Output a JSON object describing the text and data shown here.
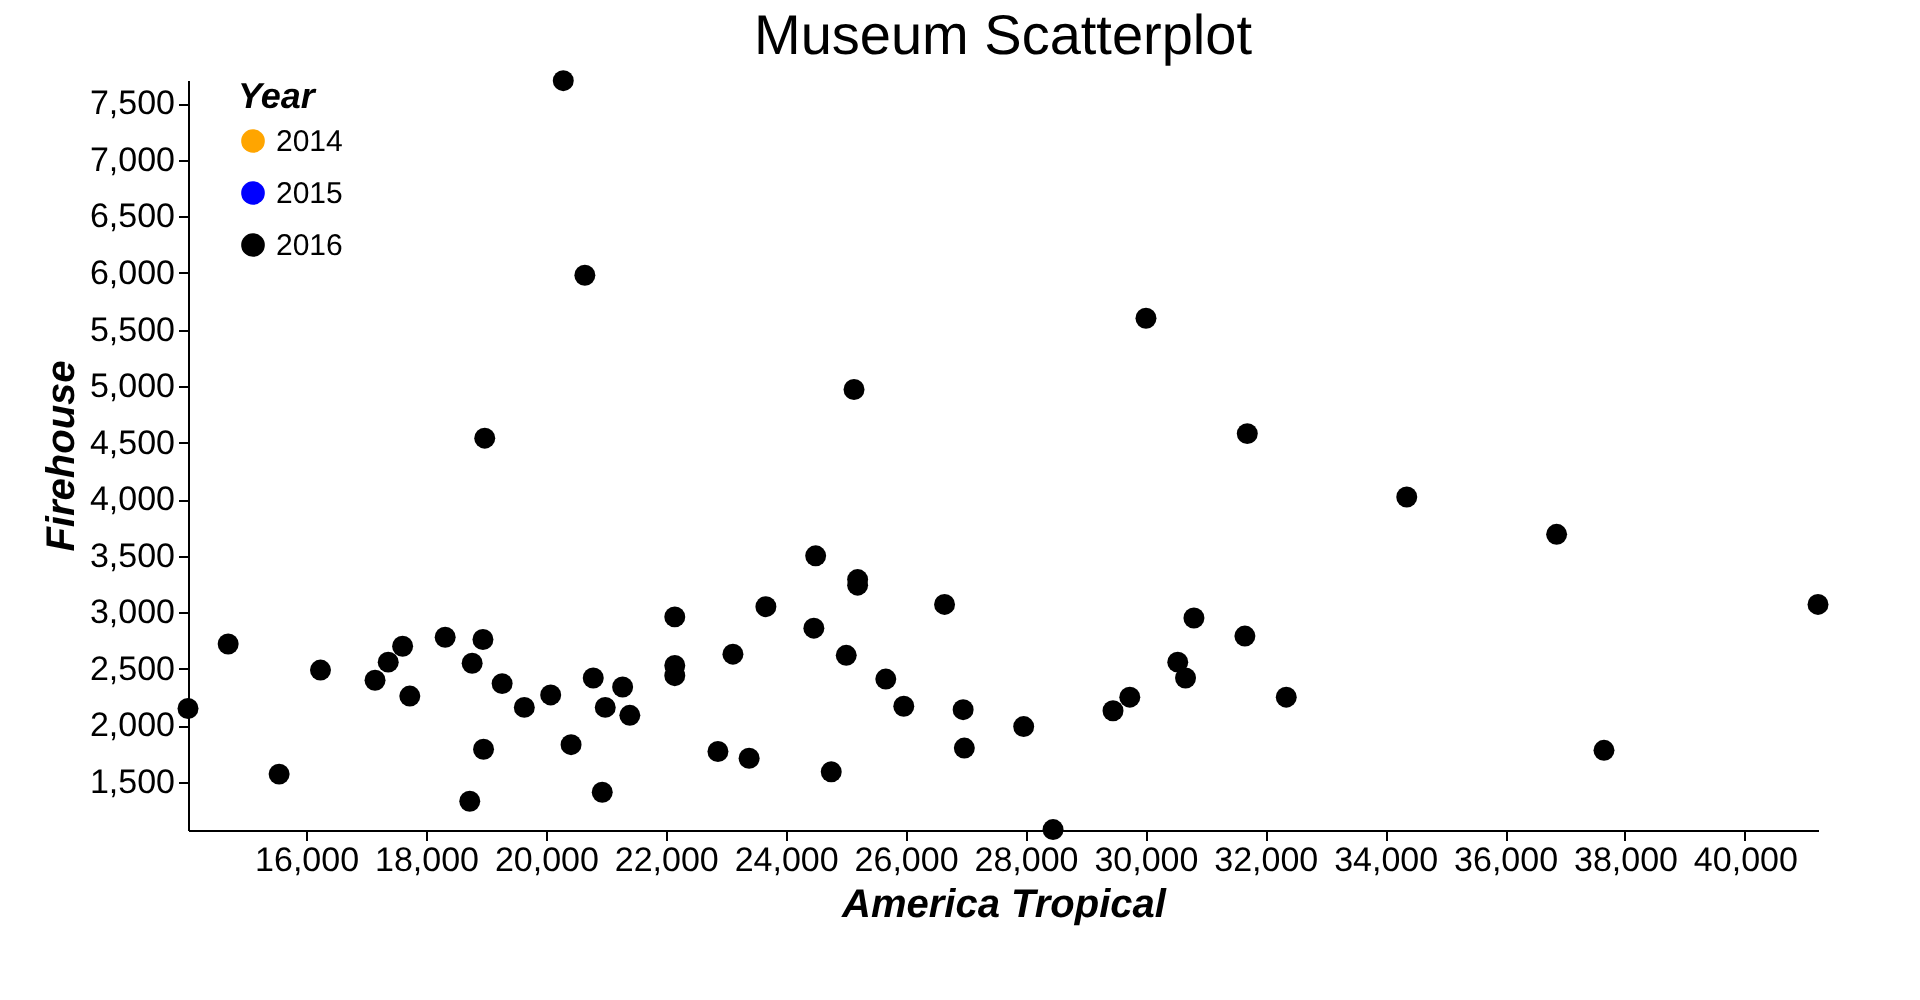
{
  "chart_data": {
    "type": "scatter",
    "title": "Museum Scatterplot",
    "xlabel": "America Tropical",
    "ylabel": "Firehouse",
    "legend_title": "Year",
    "series": [
      {
        "name": "2014",
        "color": "#ffa500"
      },
      {
        "name": "2015",
        "color": "#0000ff"
      },
      {
        "name": "2016",
        "color": "#000000",
        "x": [
          14030,
          14700,
          15550,
          16240,
          17150,
          17370,
          17610,
          17730,
          18320,
          18770,
          18950,
          18730,
          18960,
          19270,
          19640,
          20080,
          20420,
          20790,
          20990,
          20940,
          21280,
          21400,
          22150,
          22150,
          22150,
          22870,
          23120,
          23390,
          23670,
          24500,
          24470,
          24760,
          25010,
          25200,
          25200,
          25670,
          25970,
          26650,
          26960,
          26980,
          27970,
          28460,
          29460,
          29740,
          30540,
          30670,
          30810,
          31660,
          32350,
          36860,
          37650,
          41220,
          20290,
          20650,
          18980,
          25140,
          30010,
          31700,
          34360
        ],
        "values": [
          2150,
          2720,
          1570,
          2490,
          2400,
          2560,
          2700,
          2260,
          2780,
          2550,
          2760,
          1330,
          1790,
          2370,
          2160,
          2270,
          1830,
          2420,
          2160,
          1410,
          2340,
          2090,
          2960,
          2530,
          2440,
          1770,
          2630,
          1710,
          3050,
          3500,
          2860,
          1590,
          2620,
          3290,
          3240,
          2410,
          2170,
          3070,
          2140,
          1800,
          1990,
          1080,
          2130,
          2250,
          2560,
          2420,
          2950,
          2790,
          2250,
          3690,
          1780,
          3070,
          7700,
          5980,
          4540,
          4970,
          5600,
          4580,
          4020
        ]
      }
    ],
    "xlim": [
      14030,
      41220
    ],
    "ylim": [
      1076,
      7706
    ],
    "xticks": [
      {
        "value": 16000,
        "label": "16,000"
      },
      {
        "value": 18000,
        "label": "18,000"
      },
      {
        "value": 20000,
        "label": "20,000"
      },
      {
        "value": 22000,
        "label": "22,000"
      },
      {
        "value": 24000,
        "label": "24,000"
      },
      {
        "value": 26000,
        "label": "26,000"
      },
      {
        "value": 28000,
        "label": "28,000"
      },
      {
        "value": 30000,
        "label": "30,000"
      },
      {
        "value": 32000,
        "label": "32,000"
      },
      {
        "value": 34000,
        "label": "34,000"
      },
      {
        "value": 36000,
        "label": "36,000"
      },
      {
        "value": 38000,
        "label": "38,000"
      },
      {
        "value": 40000,
        "label": "40,000"
      }
    ],
    "yticks": [
      {
        "value": 1500,
        "label": "1,500"
      },
      {
        "value": 2000,
        "label": "2,000"
      },
      {
        "value": 2500,
        "label": "2,500"
      },
      {
        "value": 3000,
        "label": "3,000"
      },
      {
        "value": 3500,
        "label": "3,500"
      },
      {
        "value": 4000,
        "label": "4,000"
      },
      {
        "value": 4500,
        "label": "4,500"
      },
      {
        "value": 5000,
        "label": "5,000"
      },
      {
        "value": 5500,
        "label": "5,500"
      },
      {
        "value": 6000,
        "label": "6,000"
      },
      {
        "value": 6500,
        "label": "6,500"
      },
      {
        "value": 7000,
        "label": "7,000"
      },
      {
        "value": 7500,
        "label": "7,500"
      }
    ],
    "grid": false,
    "legend": "top left",
    "marker": "circle"
  }
}
